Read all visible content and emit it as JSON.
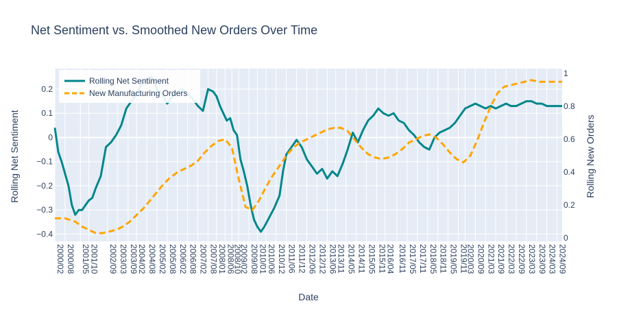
{
  "chart_data": {
    "type": "line",
    "title": "Net Sentiment vs. Smoothed New Orders Over Time",
    "xlabel": "Date",
    "ylabel": "Rolling Net Sentiment",
    "y2label": "Rolling New Orders",
    "ylim": [
      -0.43,
      0.285
    ],
    "y2lim": [
      -0.02,
      1.03
    ],
    "yticks": [
      -0.4,
      -0.3,
      -0.2,
      -0.1,
      0,
      0.1,
      0.2
    ],
    "yticklabels": [
      "−0.4",
      "−0.3",
      "−0.2",
      "−0.1",
      "0",
      "0.1",
      "0.2"
    ],
    "y2ticks": [
      0,
      0.2,
      0.4,
      0.6,
      0.8,
      1
    ],
    "y2ticklabels": [
      "0",
      "0.2",
      "0.4",
      "0.6",
      "0.8",
      "1"
    ],
    "xticks": [
      "2000/02",
      "2000/08",
      "2001/05",
      "2001/10",
      "2002/09",
      "2003/03",
      "2003/09",
      "2004/02",
      "2004/08",
      "2005/02",
      "2005/08",
      "2006/02",
      "2006/08",
      "2007/02",
      "2007/08",
      "2008/01",
      "2008/06",
      "2008/10",
      "2009/02",
      "2009/08",
      "2010/01",
      "2010/06",
      "2010/12",
      "2011/06",
      "2011/12",
      "2012/06",
      "2012/12",
      "2013/06",
      "2013/11",
      "2014/05",
      "2014/11",
      "2015/05",
      "2015/11",
      "2016/04",
      "2016/11",
      "2017/05",
      "2017/11",
      "2018/05",
      "2018/11",
      "2019/05",
      "2019/11",
      "2020/03",
      "2020/09",
      "2021/03",
      "2021/09",
      "2022/03",
      "2022/09",
      "2023/03",
      "2023/09",
      "2024/03",
      "2024/09"
    ],
    "legend_position": "top-left",
    "grid": true,
    "colors": {
      "sentiment": "#00868b",
      "orders": "#ffa500",
      "plot_bg": "#e5ecf6",
      "grid": "#ffffff",
      "text": "#2a3f5f"
    },
    "series": [
      {
        "name": "Rolling Net Sentiment",
        "axis": "y",
        "style": "solid",
        "x": [
          "2000/02",
          "2000/04",
          "2000/06",
          "2000/08",
          "2000/10",
          "2000/12",
          "2001/02",
          "2001/04",
          "2001/06",
          "2001/08",
          "2001/10",
          "2001/12",
          "2002/02",
          "2002/05",
          "2002/08",
          "2002/11",
          "2003/02",
          "2003/05",
          "2003/08",
          "2003/11",
          "2004/02",
          "2004/05",
          "2004/08",
          "2004/11",
          "2005/02",
          "2005/05",
          "2005/08",
          "2005/11",
          "2006/02",
          "2006/05",
          "2006/08",
          "2006/11",
          "2007/02",
          "2007/05",
          "2007/08",
          "2007/11",
          "2008/01",
          "2008/03",
          "2008/05",
          "2008/07",
          "2008/09",
          "2008/11",
          "2009/01",
          "2009/03",
          "2009/05",
          "2009/07",
          "2009/09",
          "2009/11",
          "2010/01",
          "2010/03",
          "2010/05",
          "2010/08",
          "2010/11",
          "2011/02",
          "2011/04",
          "2011/06",
          "2011/08",
          "2011/10",
          "2011/12",
          "2012/03",
          "2012/06",
          "2012/09",
          "2012/12",
          "2013/03",
          "2013/06",
          "2013/09",
          "2013/12",
          "2014/03",
          "2014/06",
          "2014/09",
          "2014/12",
          "2015/03",
          "2015/06",
          "2015/09",
          "2015/12",
          "2016/03",
          "2016/06",
          "2016/09",
          "2016/12",
          "2017/03",
          "2017/06",
          "2017/09",
          "2017/12",
          "2018/03",
          "2018/06",
          "2018/09",
          "2018/12",
          "2019/03",
          "2019/06",
          "2019/09",
          "2019/12",
          "2020/03",
          "2020/06",
          "2020/09",
          "2020/12",
          "2021/03",
          "2021/06",
          "2021/09",
          "2021/12",
          "2022/03",
          "2022/06",
          "2022/09",
          "2022/12",
          "2023/03",
          "2023/06",
          "2023/09",
          "2023/12",
          "2024/03",
          "2024/06",
          "2024/09",
          "2024/12"
        ],
        "values": [
          0.04,
          -0.06,
          -0.1,
          -0.15,
          -0.2,
          -0.28,
          -0.32,
          -0.3,
          -0.3,
          -0.28,
          -0.26,
          -0.25,
          -0.21,
          -0.16,
          -0.04,
          -0.02,
          0.01,
          0.05,
          0.12,
          0.15,
          0.18,
          0.22,
          0.24,
          0.25,
          0.2,
          0.18,
          0.14,
          0.17,
          0.19,
          0.2,
          0.18,
          0.16,
          0.13,
          0.11,
          0.2,
          0.19,
          0.17,
          0.13,
          0.1,
          0.07,
          0.08,
          0.03,
          0.01,
          -0.09,
          -0.14,
          -0.2,
          -0.28,
          -0.34,
          -0.37,
          -0.39,
          -0.37,
          -0.33,
          -0.29,
          -0.24,
          -0.14,
          -0.07,
          -0.05,
          -0.03,
          -0.01,
          -0.04,
          -0.09,
          -0.12,
          -0.15,
          -0.13,
          -0.17,
          -0.14,
          -0.16,
          -0.11,
          -0.05,
          0.02,
          -0.02,
          0.03,
          0.07,
          0.09,
          0.12,
          0.1,
          0.09,
          0.1,
          0.07,
          0.06,
          0.03,
          0.01,
          -0.02,
          -0.04,
          -0.05,
          0,
          0.02,
          0.03,
          0.04,
          0.06,
          0.09,
          0.12,
          0.13,
          0.14,
          0.13,
          0.12,
          0.13,
          0.12,
          0.13,
          0.14,
          0.13,
          0.13,
          0.14,
          0.15,
          0.15,
          0.14,
          0.14,
          0.13,
          0.13,
          0.13,
          0.13
        ]
      },
      {
        "name": "New Manufacturing Orders",
        "axis": "y2",
        "style": "dash",
        "x": [
          "2000/02",
          "2000/08",
          "2001/02",
          "2001/06",
          "2001/10",
          "2002/02",
          "2002/06",
          "2002/10",
          "2003/02",
          "2003/06",
          "2003/10",
          "2004/02",
          "2004/06",
          "2004/10",
          "2005/02",
          "2005/06",
          "2005/10",
          "2006/02",
          "2006/06",
          "2006/10",
          "2007/02",
          "2007/06",
          "2007/10",
          "2008/02",
          "2008/06",
          "2008/10",
          "2009/02",
          "2009/06",
          "2009/10",
          "2010/02",
          "2010/06",
          "2010/10",
          "2011/02",
          "2011/06",
          "2011/10",
          "2012/02",
          "2012/06",
          "2012/10",
          "2013/02",
          "2013/06",
          "2013/10",
          "2014/02",
          "2014/06",
          "2014/10",
          "2015/02",
          "2015/06",
          "2015/10",
          "2016/02",
          "2016/06",
          "2016/10",
          "2017/02",
          "2017/06",
          "2017/10",
          "2018/02",
          "2018/06",
          "2018/10",
          "2019/02",
          "2019/06",
          "2019/10",
          "2020/02",
          "2020/06",
          "2020/10",
          "2021/02",
          "2021/06",
          "2021/10",
          "2022/02",
          "2022/06",
          "2022/10",
          "2023/02",
          "2023/06",
          "2023/10",
          "2024/02",
          "2024/06",
          "2024/10",
          "2024/12"
        ],
        "values": [
          0.12,
          0.12,
          0.1,
          0.07,
          0.05,
          0.03,
          0.03,
          0.04,
          0.05,
          0.07,
          0.1,
          0.14,
          0.18,
          0.23,
          0.28,
          0.33,
          0.37,
          0.4,
          0.42,
          0.44,
          0.47,
          0.52,
          0.56,
          0.59,
          0.6,
          0.55,
          0.36,
          0.19,
          0.17,
          0.23,
          0.31,
          0.38,
          0.44,
          0.5,
          0.55,
          0.58,
          0.6,
          0.62,
          0.64,
          0.66,
          0.67,
          0.67,
          0.65,
          0.6,
          0.55,
          0.51,
          0.49,
          0.48,
          0.49,
          0.51,
          0.54,
          0.58,
          0.6,
          0.62,
          0.63,
          0.61,
          0.57,
          0.52,
          0.48,
          0.46,
          0.5,
          0.59,
          0.7,
          0.8,
          0.88,
          0.92,
          0.93,
          0.94,
          0.95,
          0.96,
          0.95,
          0.95,
          0.95,
          0.95,
          0.95
        ]
      }
    ]
  }
}
